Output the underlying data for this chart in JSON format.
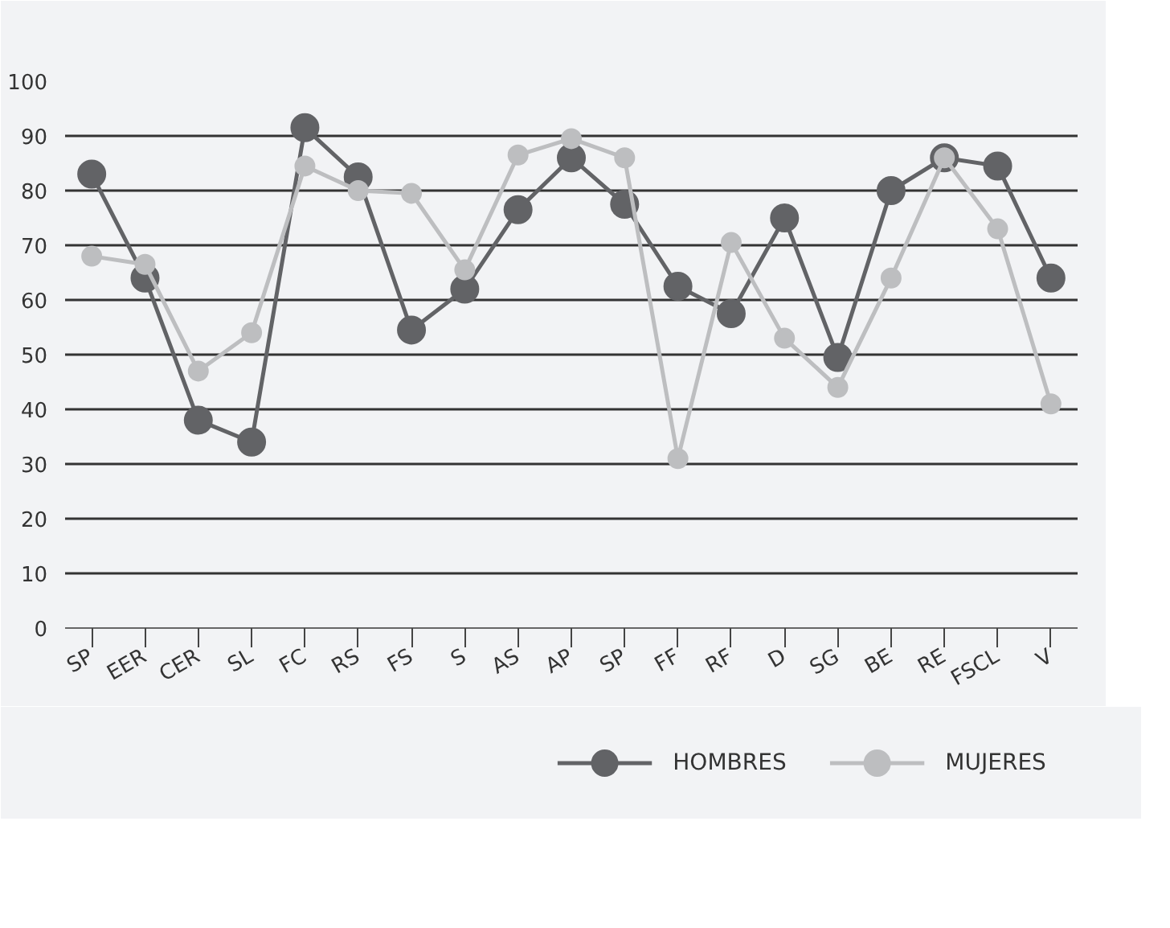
{
  "chart_data": {
    "type": "line",
    "categories": [
      "SP",
      "EER",
      "CER",
      "SL",
      "FC",
      "RS",
      "FS",
      "S",
      "AS",
      "AP",
      "SP",
      "FF",
      "RF",
      "D",
      "SG",
      "BE",
      "RE",
      "FSCL",
      "V"
    ],
    "series": [
      {
        "name": "HOMBRES",
        "color": "#626366",
        "values": [
          83,
          64,
          38,
          34,
          91.5,
          82.5,
          54.5,
          62,
          76.5,
          86,
          77.5,
          62.5,
          57.5,
          75,
          49.5,
          80,
          86,
          84.5,
          64
        ]
      },
      {
        "name": "MUJERES",
        "color": "#bdbec0",
        "values": [
          68,
          66.5,
          47,
          54,
          84.5,
          80,
          79.5,
          65.5,
          86.5,
          89.5,
          86,
          31,
          70.5,
          53,
          44,
          64,
          86,
          73,
          41
        ]
      }
    ],
    "ylim": [
      0,
      100
    ],
    "yticks": [
      0,
      10,
      20,
      30,
      40,
      50,
      60,
      70,
      80,
      90,
      100
    ],
    "grid": "y",
    "legend": "bottom",
    "marker": "circle",
    "line_style": "solid"
  }
}
